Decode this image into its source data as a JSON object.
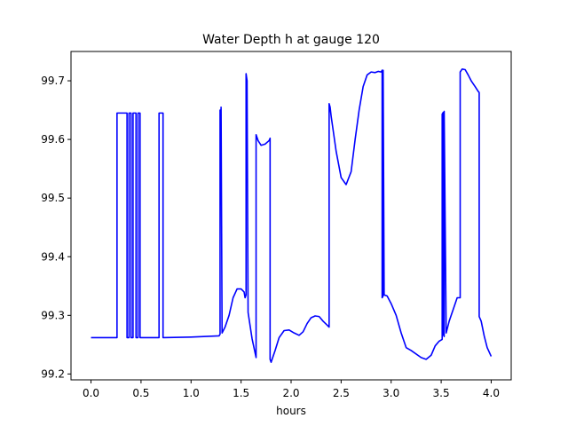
{
  "chart_data": {
    "type": "line",
    "title": "Water Depth h at gauge 120",
    "xlabel": "hours",
    "ylabel": "",
    "xlim": [
      -0.2,
      4.2
    ],
    "ylim": [
      99.19,
      99.75
    ],
    "x_ticks": [
      0.0,
      0.5,
      1.0,
      1.5,
      2.0,
      2.5,
      3.0,
      3.5,
      4.0
    ],
    "x_tick_labels": [
      "0.0",
      "0.5",
      "1.0",
      "1.5",
      "2.0",
      "2.5",
      "3.0",
      "3.5",
      "4.0"
    ],
    "y_ticks": [
      99.2,
      99.3,
      99.4,
      99.5,
      99.6,
      99.7
    ],
    "y_tick_labels": [
      "99.2",
      "99.3",
      "99.4",
      "99.5",
      "99.6",
      "99.7"
    ],
    "grid": false,
    "line_color": "#0000ff",
    "series": [
      {
        "x": [
          0.0,
          0.26,
          0.26,
          0.36,
          0.36,
          0.38,
          0.38,
          0.4,
          0.4,
          0.42,
          0.42,
          0.45,
          0.45,
          0.47,
          0.47,
          0.49,
          0.49,
          0.68,
          0.68,
          0.72,
          0.72,
          1.0,
          1.28,
          1.29,
          1.29,
          1.3,
          1.3,
          1.31,
          1.34,
          1.38,
          1.42,
          1.46,
          1.5,
          1.53,
          1.54,
          1.55,
          1.55,
          1.56,
          1.56,
          1.57,
          1.61,
          1.65,
          1.65,
          1.67,
          1.7,
          1.74,
          1.78,
          1.79,
          1.79,
          1.8,
          1.84,
          1.88,
          1.93,
          1.98,
          2.03,
          2.08,
          2.12,
          2.16,
          2.2,
          2.24,
          2.28,
          2.32,
          2.35,
          2.38,
          2.38,
          2.39,
          2.4,
          2.45,
          2.5,
          2.55,
          2.6,
          2.64,
          2.68,
          2.72,
          2.76,
          2.8,
          2.84,
          2.87,
          2.9,
          2.91,
          2.91,
          2.92,
          2.92,
          2.93,
          2.96,
          3.0,
          3.05,
          3.1,
          3.15,
          3.2,
          3.3,
          3.35,
          3.4,
          3.44,
          3.48,
          3.51,
          3.51,
          3.52,
          3.52,
          3.53,
          3.53,
          3.55,
          3.58,
          3.62,
          3.66,
          3.69,
          3.69,
          3.71,
          3.74,
          3.77,
          3.8,
          3.84,
          3.87,
          3.88,
          3.88,
          3.9,
          3.93,
          3.96,
          4.0
        ],
        "y": [
          99.262,
          99.262,
          99.645,
          99.645,
          99.262,
          99.262,
          99.645,
          99.645,
          99.262,
          99.262,
          99.645,
          99.645,
          99.262,
          99.262,
          99.645,
          99.645,
          99.262,
          99.262,
          99.645,
          99.645,
          99.262,
          99.263,
          99.265,
          99.268,
          99.65,
          99.65,
          99.655,
          99.27,
          99.28,
          99.3,
          99.33,
          99.345,
          99.345,
          99.34,
          99.33,
          99.335,
          99.712,
          99.7,
          99.69,
          99.305,
          99.26,
          99.228,
          99.608,
          99.598,
          99.59,
          99.592,
          99.598,
          99.602,
          99.225,
          99.22,
          99.24,
          99.262,
          99.274,
          99.275,
          99.27,
          99.266,
          99.272,
          99.286,
          99.296,
          99.299,
          99.298,
          99.29,
          99.285,
          99.28,
          99.661,
          99.655,
          99.64,
          99.58,
          99.535,
          99.523,
          99.545,
          99.6,
          99.65,
          99.69,
          99.71,
          99.715,
          99.714,
          99.716,
          99.715,
          99.718,
          99.33,
          99.333,
          99.718,
          99.335,
          99.333,
          99.32,
          99.3,
          99.27,
          99.245,
          99.24,
          99.228,
          99.225,
          99.232,
          99.248,
          99.256,
          99.259,
          99.643,
          99.646,
          99.268,
          99.264,
          99.648,
          99.27,
          99.29,
          99.31,
          99.33,
          99.33,
          99.715,
          99.72,
          99.719,
          99.71,
          99.7,
          99.69,
          99.682,
          99.68,
          99.298,
          99.29,
          99.265,
          99.245,
          99.23
        ]
      }
    ]
  }
}
